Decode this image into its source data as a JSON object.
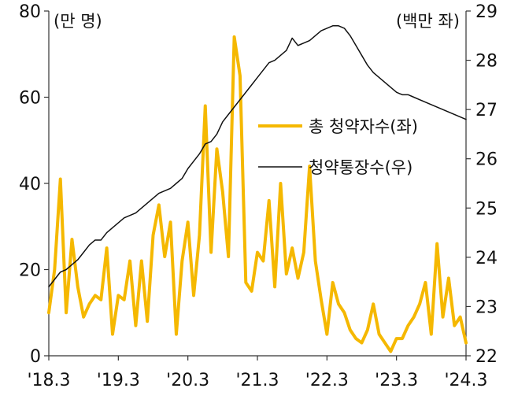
{
  "chart_data": {
    "type": "line",
    "left_unit": "(만 명)",
    "right_unit": "(백만 좌)",
    "left_axis": {
      "ylim": [
        0,
        80
      ],
      "ticks": [
        0,
        20,
        40,
        60,
        80
      ],
      "tick_labels": [
        "0",
        "20",
        "40",
        "60",
        "80"
      ]
    },
    "right_axis": {
      "ylim": [
        22,
        29
      ],
      "ticks": [
        22,
        23,
        24,
        25,
        26,
        27,
        28,
        29
      ],
      "tick_labels": [
        "22",
        "23",
        "24",
        "25",
        "26",
        "27",
        "28",
        "29"
      ]
    },
    "x_tick_labels": [
      "'18.3",
      "'19.3",
      "'20.3",
      "'21.3",
      "'22.3",
      "'23.3",
      "'24.3"
    ],
    "x_tick_index": [
      0,
      12,
      24,
      36,
      48,
      60,
      72
    ],
    "legend_position": "right-middle",
    "series": [
      {
        "name": "총 청약자수(좌)",
        "axis": "left",
        "color": "#F5B800",
        "values": [
          10,
          20,
          41,
          10,
          27,
          16,
          9,
          12,
          14,
          13,
          25,
          5,
          14,
          13,
          22,
          7,
          22,
          8,
          28,
          35,
          23,
          31,
          5,
          22,
          31,
          14,
          28,
          58,
          24,
          48,
          38,
          23,
          74,
          65,
          17,
          15,
          24,
          22,
          36,
          16,
          40,
          19,
          25,
          18,
          24,
          44,
          22,
          13,
          5,
          17,
          12,
          10,
          6,
          4,
          3,
          6,
          12,
          5,
          3,
          1,
          4,
          4,
          7,
          9,
          12,
          17,
          5,
          26,
          9,
          18,
          7,
          9,
          3
        ]
      },
      {
        "name": "청약통장수(우)",
        "axis": "right",
        "color": "#111111",
        "values": [
          23.4,
          23.55,
          23.7,
          23.75,
          23.85,
          23.95,
          24.1,
          24.25,
          24.35,
          24.35,
          24.5,
          24.6,
          24.7,
          24.8,
          24.85,
          24.9,
          25.0,
          25.1,
          25.2,
          25.3,
          25.35,
          25.4,
          25.5,
          25.6,
          25.8,
          25.95,
          26.1,
          26.3,
          26.35,
          26.5,
          26.75,
          26.9,
          27.05,
          27.2,
          27.35,
          27.5,
          27.65,
          27.8,
          27.95,
          28.0,
          28.1,
          28.2,
          28.45,
          28.3,
          28.35,
          28.4,
          28.5,
          28.6,
          28.65,
          28.7,
          28.7,
          28.65,
          28.5,
          28.3,
          28.1,
          27.9,
          27.75,
          27.65,
          27.55,
          27.45,
          27.35,
          27.3,
          27.3,
          27.25,
          27.2,
          27.15,
          27.1,
          27.05,
          27.0,
          26.95,
          26.9,
          26.85,
          26.8
        ]
      }
    ]
  }
}
